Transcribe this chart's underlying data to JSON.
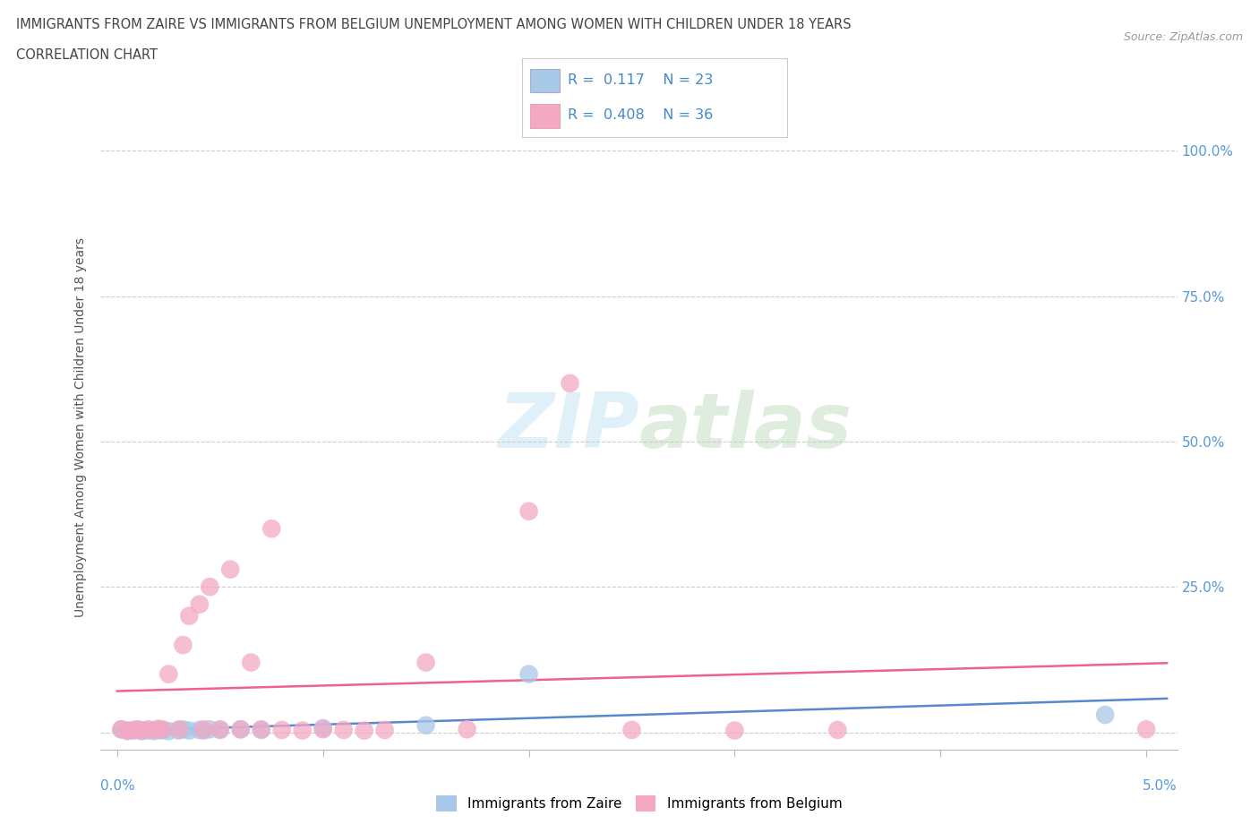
{
  "title_line1": "IMMIGRANTS FROM ZAIRE VS IMMIGRANTS FROM BELGIUM UNEMPLOYMENT AMONG WOMEN WITH CHILDREN UNDER 18 YEARS",
  "title_line2": "CORRELATION CHART",
  "source_text": "Source: ZipAtlas.com",
  "ylabel": "Unemployment Among Women with Children Under 18 years",
  "watermark_ZIP": "ZIP",
  "watermark_atlas": "atlas",
  "legend_label1": "Immigrants from Zaire",
  "legend_label2": "Immigrants from Belgium",
  "R1": 0.117,
  "N1": 23,
  "R2": 0.408,
  "N2": 36,
  "color_zaire": "#a8c8e8",
  "color_belgium": "#f4a8c4",
  "color_line_zaire": "#5588cc",
  "color_line_belgium": "#f06090",
  "ytick_values": [
    0.0,
    0.25,
    0.5,
    0.75,
    1.0
  ],
  "ytick_labels": [
    "",
    "25.0%",
    "50.0%",
    "75.0%",
    "100.0%"
  ],
  "xlim": [
    -0.0008,
    0.0515
  ],
  "ylim": [
    -0.03,
    1.08
  ],
  "zaire_x": [
    0.0002,
    0.0005,
    0.0008,
    0.001,
    0.0012,
    0.0015,
    0.0018,
    0.002,
    0.0022,
    0.0025,
    0.003,
    0.0032,
    0.0035,
    0.004,
    0.0042,
    0.0045,
    0.005,
    0.006,
    0.007,
    0.01,
    0.015,
    0.02,
    0.048
  ],
  "zaire_y": [
    0.005,
    0.002,
    0.003,
    0.004,
    0.002,
    0.003,
    0.002,
    0.004,
    0.003,
    0.002,
    0.003,
    0.005,
    0.003,
    0.004,
    0.003,
    0.005,
    0.004,
    0.005,
    0.004,
    0.007,
    0.012,
    0.1,
    0.03
  ],
  "belgium_x": [
    0.0002,
    0.0005,
    0.0008,
    0.001,
    0.0012,
    0.0015,
    0.0018,
    0.002,
    0.0022,
    0.0025,
    0.003,
    0.0032,
    0.0035,
    0.004,
    0.0042,
    0.0045,
    0.005,
    0.0055,
    0.006,
    0.0065,
    0.007,
    0.0075,
    0.008,
    0.009,
    0.01,
    0.011,
    0.012,
    0.013,
    0.015,
    0.017,
    0.02,
    0.022,
    0.025,
    0.03,
    0.035,
    0.05
  ],
  "belgium_y": [
    0.005,
    0.003,
    0.004,
    0.005,
    0.003,
    0.005,
    0.004,
    0.006,
    0.005,
    0.1,
    0.005,
    0.15,
    0.2,
    0.22,
    0.005,
    0.25,
    0.005,
    0.28,
    0.005,
    0.12,
    0.005,
    0.35,
    0.004,
    0.003,
    0.005,
    0.004,
    0.003,
    0.004,
    0.12,
    0.005,
    0.38,
    0.6,
    0.004,
    0.003,
    0.004,
    0.005
  ]
}
